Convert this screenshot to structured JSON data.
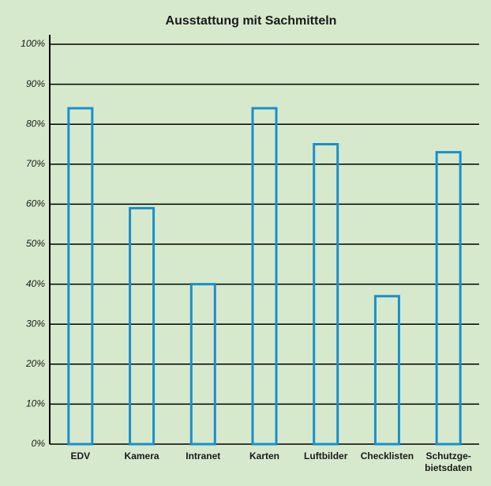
{
  "chart_data": {
    "type": "bar",
    "title": "Ausstattung mit Sachmitteln",
    "categories": [
      "EDV",
      "Kamera",
      "Intranet",
      "Karten",
      "Luftbilder",
      "Checklisten",
      "Schutzge-\nbietsdaten"
    ],
    "values": [
      84,
      59,
      40,
      84,
      75,
      37,
      73
    ],
    "color": "#1a8fc9",
    "ylim": [
      0,
      100
    ],
    "yticks": [
      {
        "value": 0,
        "label": "0%"
      },
      {
        "value": 10,
        "label": "10%"
      },
      {
        "value": 20,
        "label": "20%"
      },
      {
        "value": 30,
        "label": "30%"
      },
      {
        "value": 40,
        "label": "40%"
      },
      {
        "value": 50,
        "label": "50%"
      },
      {
        "value": 60,
        "label": "60%"
      },
      {
        "value": 70,
        "label": "70%"
      },
      {
        "value": 80,
        "label": "80%"
      },
      {
        "value": 90,
        "label": "90%"
      },
      {
        "value": 100,
        "label": "100%"
      }
    ],
    "grid": true
  }
}
